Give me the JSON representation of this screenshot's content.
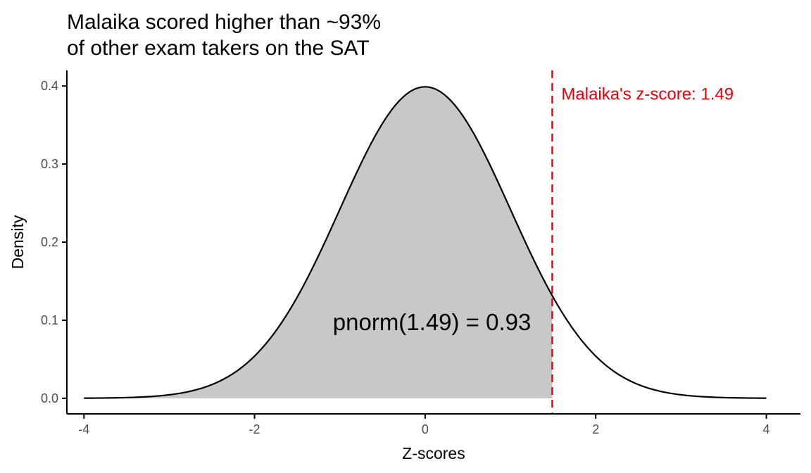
{
  "chart_data": {
    "type": "area",
    "title_lines": [
      "Malaika scored higher than ~93%",
      "of other exam takers on the SAT"
    ],
    "xlabel": "Z-scores",
    "ylabel": "Density",
    "xlim": [
      -4.2,
      4.4
    ],
    "ylim": [
      -0.02,
      0.42
    ],
    "x_ticks": [
      -4,
      -2,
      0,
      2,
      4
    ],
    "x_tick_labels": [
      "-4",
      "-2",
      "0",
      "2",
      "4"
    ],
    "y_ticks": [
      0.0,
      0.1,
      0.2,
      0.3,
      0.4
    ],
    "y_tick_labels": [
      "0.0",
      "0.1",
      "0.2",
      "0.3",
      "0.4"
    ],
    "curve": {
      "distribution": "standard normal",
      "x_range": [
        -4,
        4
      ]
    },
    "shaded_region": {
      "x_from": -4,
      "x_to": 1.49,
      "color": "#c8c8c8"
    },
    "reference_line": {
      "x": 1.49,
      "style": "dashed",
      "color": "#e8000b",
      "label": "Malaika's z-score: 1.49"
    },
    "annotation": {
      "text": "pnorm(1.49) = 0.93",
      "x": 0.08,
      "y": 0.098
    },
    "grid": false,
    "legend": "none"
  }
}
